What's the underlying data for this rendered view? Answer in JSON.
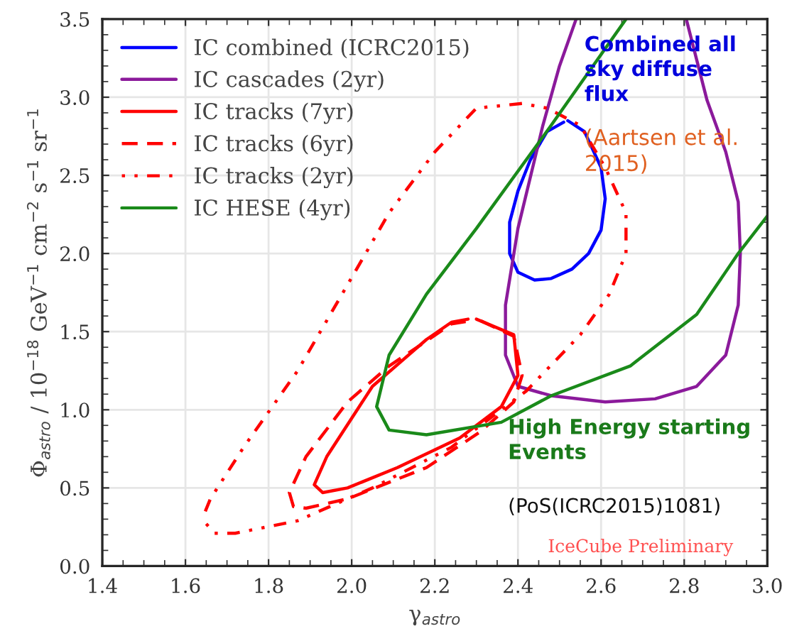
{
  "chart_data": {
    "type": "line",
    "xlabel": "γ$_{astro}$",
    "ylabel": "Φ$_{astro}$ / 10$^{−18}$ GeV$^{−1}$ cm$^{−2}$ s$^{−1}$ sr$^{−1}$",
    "xlim": [
      1.4,
      3.0
    ],
    "ylim": [
      0,
      3.5
    ],
    "xticks": [
      {
        "value": 1.4,
        "label": "1.4"
      },
      {
        "value": 1.6,
        "label": "1.6"
      },
      {
        "value": 1.8,
        "label": "1.8"
      },
      {
        "value": 2.0,
        "label": "2.0"
      },
      {
        "value": 2.2,
        "label": "2.2"
      },
      {
        "value": 2.4,
        "label": "2.4"
      },
      {
        "value": 2.6,
        "label": "2.6"
      },
      {
        "value": 2.8,
        "label": "2.8"
      },
      {
        "value": 3.0,
        "label": "3.0"
      }
    ],
    "yticks": [
      {
        "value": 0,
        "label": "0.0"
      },
      {
        "value": 0.5,
        "label": "0.5"
      },
      {
        "value": 1.0,
        "label": "1.0"
      },
      {
        "value": 1.5,
        "label": "1.5"
      },
      {
        "value": 2.0,
        "label": "2.0"
      },
      {
        "value": 2.5,
        "label": "2.5"
      },
      {
        "value": 3.0,
        "label": "3.0"
      },
      {
        "value": 3.5,
        "label": "3.5"
      }
    ],
    "grid": true,
    "legend": "top left",
    "marker": "none",
    "series": [
      {
        "name": "IC combined (ICRC2015)",
        "color": "#0000ff",
        "line_style": "solid",
        "x": [
          2.52,
          2.56,
          2.6,
          2.61,
          2.6,
          2.57,
          2.53,
          2.48,
          2.44,
          2.4,
          2.38,
          2.38,
          2.4,
          2.43,
          2.47,
          2.51
        ],
        "values": [
          2.85,
          2.78,
          2.55,
          2.35,
          2.15,
          2.0,
          1.9,
          1.84,
          1.83,
          1.88,
          2.0,
          2.2,
          2.4,
          2.6,
          2.78,
          2.84
        ]
      },
      {
        "name": "IC cascades (2yr)",
        "color": "#8b1a9b",
        "line_style": "solid",
        "x": [
          2.54,
          2.5,
          2.46,
          2.4,
          2.37,
          2.37,
          2.4,
          2.48,
          2.61,
          2.73,
          2.83,
          2.9,
          2.93,
          2.935,
          2.93,
          2.9,
          2.855,
          2.805
        ],
        "values": [
          3.5,
          3.2,
          2.82,
          2.16,
          1.67,
          1.35,
          1.15,
          1.09,
          1.05,
          1.07,
          1.15,
          1.35,
          1.67,
          2.0,
          2.33,
          2.65,
          2.98,
          3.5
        ]
      },
      {
        "name": "IC tracks (7yr)",
        "color": "#ff0000",
        "line_style": "solid",
        "x": [
          2.3,
          2.39,
          2.4,
          2.36,
          2.26,
          2.11,
          1.99,
          1.93,
          1.91,
          1.94,
          2.05,
          2.18,
          2.24,
          2.28
        ],
        "values": [
          1.58,
          1.48,
          1.22,
          1.02,
          0.82,
          0.63,
          0.5,
          0.47,
          0.52,
          0.7,
          1.15,
          1.45,
          1.56,
          1.58
        ]
      },
      {
        "name": "IC tracks (6yr)",
        "color": "#ff0000",
        "line_style": "dashed",
        "x": [
          2.31,
          2.39,
          2.41,
          2.39,
          2.31,
          2.18,
          1.99,
          1.89,
          1.86,
          1.85,
          1.89,
          1.99,
          2.09,
          2.18,
          2.24,
          2.29
        ],
        "values": [
          1.57,
          1.47,
          1.22,
          1.05,
          0.86,
          0.63,
          0.43,
          0.37,
          0.38,
          0.47,
          0.7,
          1.05,
          1.28,
          1.44,
          1.55,
          1.57
        ]
      },
      {
        "name": "IC tracks (2yr)",
        "color": "#ff0000",
        "line_style": "dotted",
        "x": [
          1.65,
          1.67,
          1.72,
          1.87,
          2.05,
          2.24,
          2.42,
          2.55,
          2.62,
          2.66,
          2.66,
          2.61,
          2.55,
          2.47,
          2.41,
          2.3,
          2.2,
          2.09,
          1.99,
          1.87,
          1.74,
          1.66,
          1.64
        ],
        "values": [
          0.27,
          0.21,
          0.21,
          0.29,
          0.5,
          0.76,
          1.12,
          1.48,
          1.74,
          2.0,
          2.26,
          2.55,
          2.82,
          2.93,
          2.96,
          2.93,
          2.65,
          2.26,
          1.8,
          1.25,
          0.76,
          0.43,
          0.3
        ]
      },
      {
        "name": "IC HESE (4yr)",
        "color": "#1a8a1a",
        "line_style": "solid",
        "x": [
          2.66,
          2.48,
          2.3,
          2.18,
          2.09,
          2.06,
          2.09,
          2.18,
          2.36,
          2.48,
          2.67,
          2.83,
          2.93,
          3.0
        ],
        "values": [
          3.5,
          2.82,
          2.16,
          1.74,
          1.35,
          1.02,
          0.87,
          0.84,
          0.92,
          1.09,
          1.28,
          1.61,
          2.0,
          2.24
        ]
      }
    ],
    "annotations": [
      "Combined all sky diffuse flux",
      "(Aartsen et al. 2015)",
      "High Energy starting Events",
      "(PoS(ICRC2015)1081)",
      "IceCube Preliminary"
    ]
  }
}
